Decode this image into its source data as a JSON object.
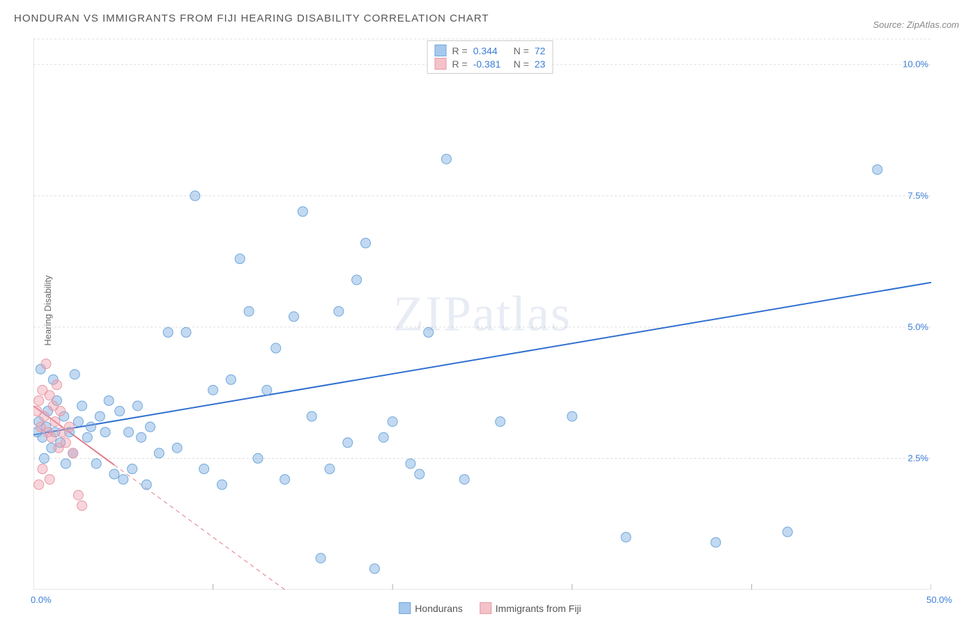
{
  "title": "HONDURAN VS IMMIGRANTS FROM FIJI HEARING DISABILITY CORRELATION CHART",
  "source": "Source: ZipAtlas.com",
  "watermark": "ZIPatlas",
  "y_axis_label": "Hearing Disability",
  "chart": {
    "type": "scatter",
    "background_color": "#ffffff",
    "grid_color": "#dddddd",
    "border_color": "#cccccc",
    "xlim": [
      0,
      50
    ],
    "ylim": [
      0,
      10.5
    ],
    "x_ticks": [
      0,
      10,
      20,
      30,
      40,
      50
    ],
    "x_tick_labels": [
      "0.0%",
      "",
      "",
      "",
      "",
      "50.0%"
    ],
    "y_ticks": [
      2.5,
      5.0,
      7.5,
      10.0
    ],
    "y_tick_labels": [
      "2.5%",
      "5.0%",
      "7.5%",
      "10.0%"
    ],
    "marker_radius": 7,
    "marker_opacity": 0.5,
    "trend_line_width": 2,
    "axis_label_color": "#3b7dd8",
    "tick_label_fontsize": 13
  },
  "stats_legend": {
    "rows": [
      {
        "swatch_fill": "#a6c8ec",
        "swatch_border": "#6fa8dc",
        "r_label": "R =",
        "r_value": "0.344",
        "n_label": "N =",
        "n_value": "72"
      },
      {
        "swatch_fill": "#f4c2c9",
        "swatch_border": "#e89aa6",
        "r_label": "R =",
        "r_value": "-0.381",
        "n_label": "N =",
        "n_value": "23"
      }
    ]
  },
  "bottom_legend": {
    "items": [
      {
        "swatch_fill": "#a6c8ec",
        "swatch_border": "#6fa8dc",
        "label": "Hondurans"
      },
      {
        "swatch_fill": "#f4c2c9",
        "swatch_border": "#e89aa6",
        "label": "Immigrants from Fiji"
      }
    ]
  },
  "series": [
    {
      "name": "Hondurans",
      "color_fill": "rgba(120,170,225,0.45)",
      "color_stroke": "#6fa8dc",
      "trend": {
        "x1": 0,
        "y1": 2.95,
        "x2": 50,
        "y2": 5.85,
        "color": "#2f6fd0",
        "dash": ""
      },
      "points": [
        [
          0.2,
          3.0
        ],
        [
          0.3,
          3.2
        ],
        [
          0.5,
          2.9
        ],
        [
          0.7,
          3.1
        ],
        [
          0.8,
          3.4
        ],
        [
          1.0,
          2.7
        ],
        [
          1.2,
          3.0
        ],
        [
          1.3,
          3.6
        ],
        [
          1.5,
          2.8
        ],
        [
          1.7,
          3.3
        ],
        [
          2.0,
          3.0
        ],
        [
          2.2,
          2.6
        ],
        [
          2.5,
          3.2
        ],
        [
          2.7,
          3.5
        ],
        [
          3.0,
          2.9
        ],
        [
          3.2,
          3.1
        ],
        [
          3.5,
          2.4
        ],
        [
          3.7,
          3.3
        ],
        [
          4.0,
          3.0
        ],
        [
          4.2,
          3.6
        ],
        [
          4.5,
          2.2
        ],
        [
          4.8,
          3.4
        ],
        [
          5.0,
          2.1
        ],
        [
          5.3,
          3.0
        ],
        [
          5.5,
          2.3
        ],
        [
          5.8,
          3.5
        ],
        [
          6.0,
          2.9
        ],
        [
          6.3,
          2.0
        ],
        [
          6.5,
          3.1
        ],
        [
          7.0,
          2.6
        ],
        [
          7.5,
          4.9
        ],
        [
          8.0,
          2.7
        ],
        [
          8.5,
          4.9
        ],
        [
          9.0,
          7.5
        ],
        [
          9.5,
          2.3
        ],
        [
          10.0,
          3.8
        ],
        [
          10.5,
          2.0
        ],
        [
          11.0,
          4.0
        ],
        [
          11.5,
          6.3
        ],
        [
          12.0,
          5.3
        ],
        [
          12.5,
          2.5
        ],
        [
          13.0,
          3.8
        ],
        [
          13.5,
          4.6
        ],
        [
          14.0,
          2.1
        ],
        [
          14.5,
          5.2
        ],
        [
          15.0,
          7.2
        ],
        [
          15.5,
          3.3
        ],
        [
          16.0,
          0.6
        ],
        [
          16.5,
          2.3
        ],
        [
          17.0,
          5.3
        ],
        [
          17.5,
          2.8
        ],
        [
          18.0,
          5.9
        ],
        [
          18.5,
          6.6
        ],
        [
          19.0,
          0.4
        ],
        [
          19.5,
          2.9
        ],
        [
          20.0,
          3.2
        ],
        [
          21.0,
          2.4
        ],
        [
          21.5,
          2.2
        ],
        [
          22.0,
          4.9
        ],
        [
          23.0,
          8.2
        ],
        [
          24.0,
          2.1
        ],
        [
          26.0,
          3.2
        ],
        [
          30.0,
          3.3
        ],
        [
          33.0,
          1.0
        ],
        [
          38.0,
          0.9
        ],
        [
          42.0,
          1.1
        ],
        [
          47.0,
          8.0
        ],
        [
          0.4,
          4.2
        ],
        [
          0.6,
          2.5
        ],
        [
          1.1,
          4.0
        ],
        [
          1.8,
          2.4
        ],
        [
          2.3,
          4.1
        ]
      ]
    },
    {
      "name": "Immigrants from Fiji",
      "color_fill": "rgba(240,160,175,0.45)",
      "color_stroke": "#e89aa6",
      "trend": {
        "x1": 0,
        "y1": 3.5,
        "x2": 14,
        "y2": 0,
        "color": "#e27a8a",
        "dash": "6,5",
        "solid_until_x": 4.5
      },
      "points": [
        [
          0.2,
          3.4
        ],
        [
          0.3,
          3.6
        ],
        [
          0.4,
          3.1
        ],
        [
          0.5,
          3.8
        ],
        [
          0.6,
          3.3
        ],
        [
          0.7,
          4.3
        ],
        [
          0.8,
          3.0
        ],
        [
          0.9,
          3.7
        ],
        [
          1.0,
          2.9
        ],
        [
          1.1,
          3.5
        ],
        [
          1.2,
          3.2
        ],
        [
          1.3,
          3.9
        ],
        [
          1.4,
          2.7
        ],
        [
          1.5,
          3.4
        ],
        [
          1.6,
          3.0
        ],
        [
          1.8,
          2.8
        ],
        [
          2.0,
          3.1
        ],
        [
          2.2,
          2.6
        ],
        [
          2.5,
          1.8
        ],
        [
          2.7,
          1.6
        ],
        [
          0.3,
          2.0
        ],
        [
          0.5,
          2.3
        ],
        [
          0.9,
          2.1
        ]
      ]
    }
  ]
}
